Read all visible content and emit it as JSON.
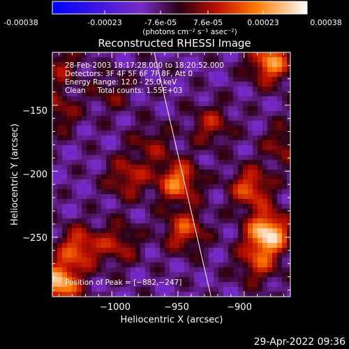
{
  "colorbar": {
    "ticks": [
      "-0.00038",
      "-0.00023",
      "-7.6e-05",
      "7.6e-05",
      "0.00023",
      "0.00038"
    ],
    "unit_label": "(photons cm⁻² s⁻¹ asec⁻²)",
    "range": [
      -0.00038,
      0.00038
    ]
  },
  "chart_data": {
    "type": "heatmap",
    "title": "Reconstructed RHESSI Image",
    "xlabel": "Heliocentric X (arcsec)",
    "ylabel": "Heliocentric Y (arcsec)",
    "xlim": [
      -1045,
      -865
    ],
    "ylim": [
      -295,
      -110
    ],
    "xticks": [
      -1000,
      -950,
      -900
    ],
    "yticks": [
      -150,
      -200,
      -250
    ],
    "xticklabels": [
      "−1000",
      "−950",
      "−900"
    ],
    "yticklabels": [
      "−150",
      "−200",
      "−250"
    ],
    "annotations": [
      "28-Feb-2003 18:17:28.000 to 18:20:52.000",
      "Detectors: 3F 4F 5F 6F 7F 8F, Att 0",
      "Energy Range: 12.0 - 25.0 keV",
      "Clean     Total counts: 1.55E+03"
    ],
    "peak_label": "Position of Peak = [−882,−247]",
    "peak": [
      -882,
      -247
    ],
    "limb_line": [
      [
        -968,
        -110
      ],
      [
        -925,
        -295
      ]
    ],
    "sources": [
      {
        "x": -882,
        "y": -247,
        "amp": 1.0
      },
      {
        "x": -1040,
        "y": -285,
        "amp": 0.9
      },
      {
        "x": -1025,
        "y": -258,
        "amp": 0.6
      },
      {
        "x": -950,
        "y": -208,
        "amp": 0.7
      },
      {
        "x": -945,
        "y": -245,
        "amp": 0.55
      },
      {
        "x": -895,
        "y": -213,
        "amp": 0.6
      },
      {
        "x": -880,
        "y": -118,
        "amp": 0.75
      },
      {
        "x": -870,
        "y": -180,
        "amp": 0.35
      },
      {
        "x": -988,
        "y": -205,
        "amp": 0.45
      },
      {
        "x": -925,
        "y": -165,
        "amp": 0.4
      },
      {
        "x": -1040,
        "y": -120,
        "amp": 0.35
      },
      {
        "x": -995,
        "y": -255,
        "amp": 0.4
      },
      {
        "x": -1000,
        "y": -140,
        "amp": 0.25
      },
      {
        "x": -890,
        "y": -270,
        "amp": 0.45
      },
      {
        "x": -970,
        "y": -180,
        "amp": 0.3
      },
      {
        "x": -1040,
        "y": -155,
        "amp": 0.35
      }
    ]
  },
  "timestamp": "29-Apr-2022 09:36"
}
